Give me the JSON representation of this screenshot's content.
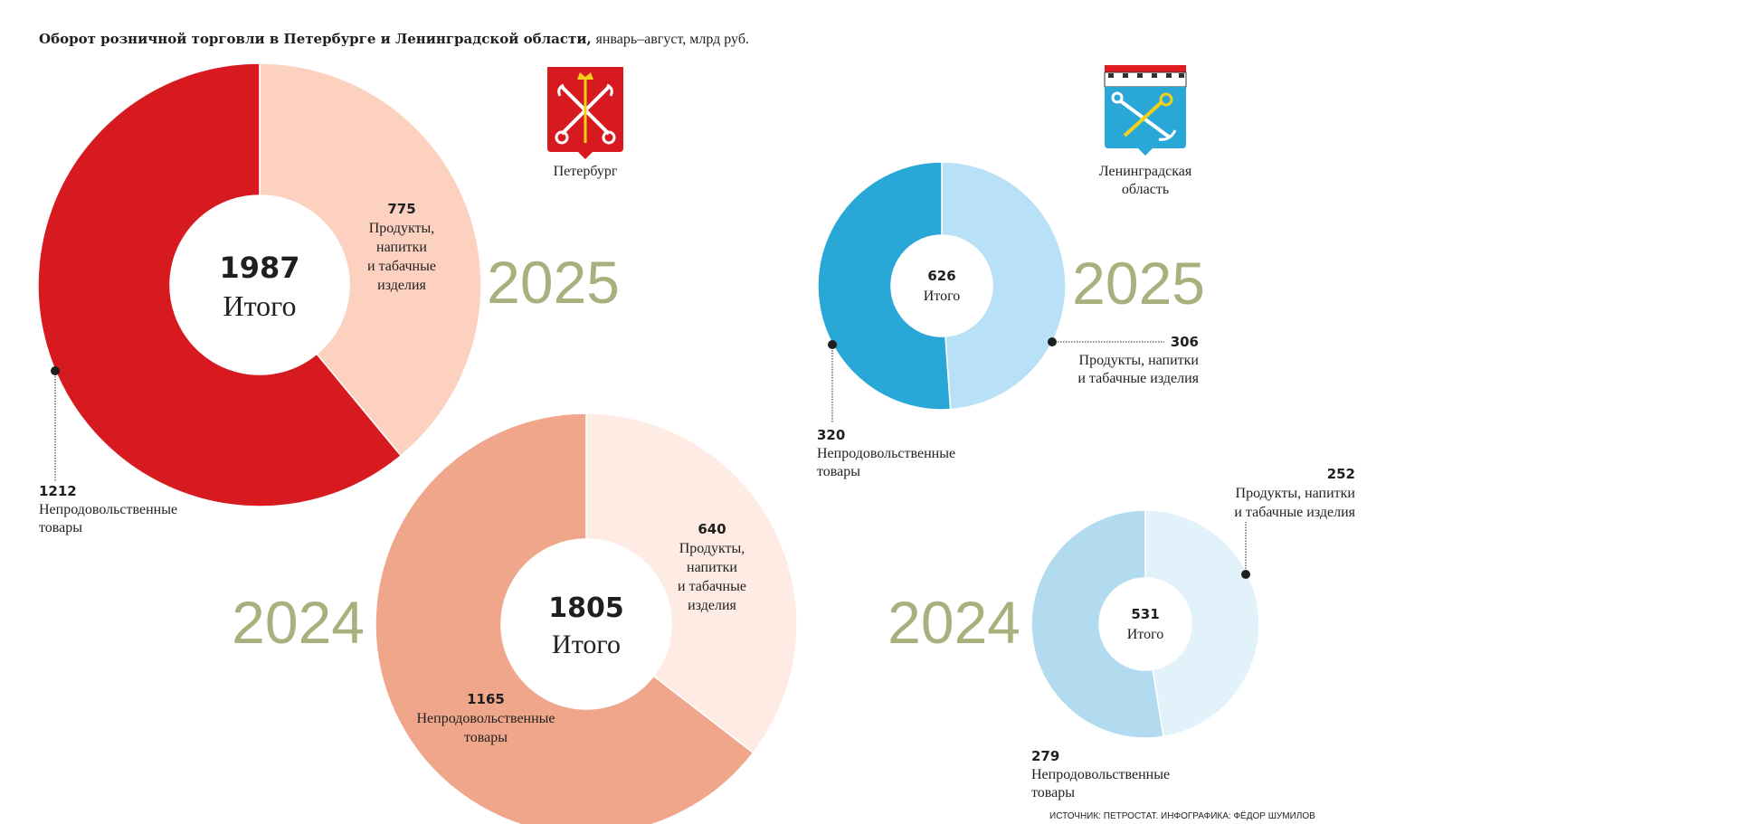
{
  "title": {
    "bold": "Оборот розничной торговли в Петербурге и Ленинградской области,",
    "sub": "январь–август, млрд руб."
  },
  "regions": {
    "spb": {
      "name": "Петербург",
      "accent": "#d71920"
    },
    "lo": {
      "name_line1": "Ленинградская",
      "name_line2": "область",
      "accent": "#29a8d8"
    }
  },
  "total_label": "Итого",
  "source": "ИСТОЧНИК: ПЕТРОСТАТ. ИНФОГРАФИКА: ФЁДОР ШУМИЛОВ",
  "chart_data": [
    {
      "type": "pie",
      "region": "Петербург",
      "year": "2025",
      "total": 1987,
      "slices": [
        {
          "value": 775,
          "label_lines": [
            "Продукты,",
            "напитки",
            "и табачные",
            "изделия"
          ],
          "color": "#fcd1c0"
        },
        {
          "value": 1212,
          "label_lines": [
            "Непродовольственные",
            "товары"
          ],
          "color": "#d71920"
        }
      ]
    },
    {
      "type": "pie",
      "region": "Петербург",
      "year": "2024",
      "total": 1805,
      "slices": [
        {
          "value": 640,
          "label_lines": [
            "Продукты,",
            "напитки",
            "и табачные",
            "изделия"
          ],
          "color": "#fdebe4"
        },
        {
          "value": 1165,
          "label_lines": [
            "Непродовольственные",
            "товары"
          ],
          "color": "#f0a68b"
        }
      ]
    },
    {
      "type": "pie",
      "region": "Ленинградская область",
      "year": "2025",
      "total": 626,
      "slices": [
        {
          "value": 306,
          "label_lines": [
            "Продукты, напитки",
            "и табачные изделия"
          ],
          "color": "#b8e0f7"
        },
        {
          "value": 320,
          "label_lines": [
            "Непродовольственные",
            "товары"
          ],
          "color": "#29a8d8"
        }
      ]
    },
    {
      "type": "pie",
      "region": "Ленинградская область",
      "year": "2024",
      "total": 531,
      "slices": [
        {
          "value": 252,
          "label_lines": [
            "Продукты, напитки",
            "и табачные изделия"
          ],
          "color": "#e2f2fb"
        },
        {
          "value": 279,
          "label_lines": [
            "Непродовольственные",
            "товары"
          ],
          "color": "#b3dbf0"
        }
      ]
    }
  ]
}
